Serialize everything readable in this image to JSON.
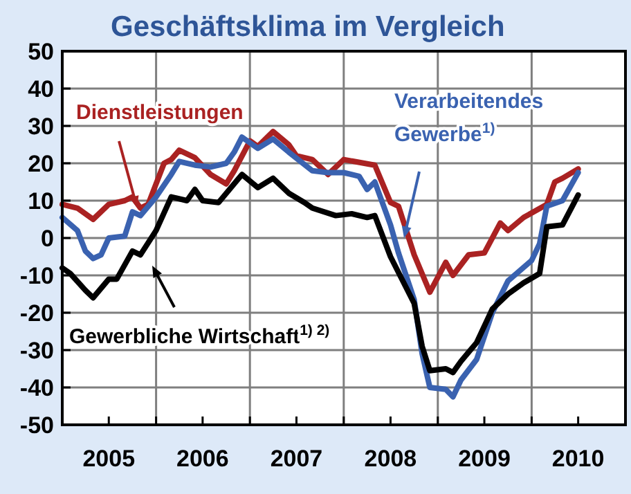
{
  "chart_data": {
    "type": "line",
    "title": "Geschäftsklima im Vergleich",
    "xlim": [
      "2005-01",
      "2011-01"
    ],
    "xticks": [
      {
        "value": "2005-01",
        "label": null
      },
      {
        "value": "2005-07",
        "label": "2005"
      },
      {
        "value": "2006-01",
        "label": null
      },
      {
        "value": "2006-07",
        "label": "2006"
      },
      {
        "value": "2007-01",
        "label": null
      },
      {
        "value": "2007-07",
        "label": "2007"
      },
      {
        "value": "2008-01",
        "label": null
      },
      {
        "value": "2008-07",
        "label": "2008"
      },
      {
        "value": "2009-01",
        "label": null
      },
      {
        "value": "2009-07",
        "label": "2009"
      },
      {
        "value": "2010-01",
        "label": null
      },
      {
        "value": "2010-07",
        "label": "2010"
      },
      {
        "value": "2011-01",
        "label": null
      }
    ],
    "ylim": [
      -50,
      50
    ],
    "yticks": [
      -50,
      -40,
      -30,
      -20,
      -10,
      0,
      10,
      20,
      30,
      40,
      50
    ],
    "grid": true,
    "marker": "none",
    "line_style": "solid",
    "series": [
      {
        "name": "Dienstleistungen",
        "color": "#aa2222",
        "x": [
          "2005-01",
          "2005-03",
          "2005-05",
          "2005-07",
          "2005-09",
          "2005-10",
          "2005-11",
          "2005-12",
          "2006-02",
          "2006-03",
          "2006-04",
          "2006-06",
          "2006-08",
          "2006-10",
          "2006-11",
          "2007-01",
          "2007-02",
          "2007-04",
          "2007-06",
          "2007-07",
          "2007-09",
          "2007-11",
          "2008-01",
          "2008-05",
          "2008-07",
          "2008-08",
          "2008-10",
          "2008-12",
          "2009-02",
          "2009-03",
          "2009-05",
          "2009-07",
          "2009-09",
          "2009-10",
          "2009-12",
          "2010-03",
          "2010-04",
          "2010-05",
          "2010-07"
        ],
        "values": [
          9,
          8,
          5,
          9,
          10,
          11,
          8,
          9,
          20,
          21,
          23.5,
          21.5,
          17,
          14.5,
          18,
          26,
          24.5,
          28.5,
          25,
          22,
          21,
          17,
          21,
          19.5,
          9.5,
          8.5,
          -4.5,
          -14.5,
          -6.5,
          -10,
          -4.5,
          -4,
          4,
          2,
          5.5,
          9,
          15,
          16,
          18.5
        ]
      },
      {
        "name": "Verarbeitendes Gewerbe$^{1)}$",
        "color": "#3a62b0",
        "x": [
          "2005-01",
          "2005-03",
          "2005-04",
          "2005-05",
          "2005-06",
          "2005-07",
          "2005-09",
          "2005-10",
          "2005-11",
          "2006-01",
          "2006-03",
          "2006-04",
          "2006-06",
          "2006-08",
          "2006-10",
          "2006-11",
          "2006-12",
          "2007-02",
          "2007-04",
          "2007-06",
          "2007-09",
          "2007-11",
          "2008-01",
          "2008-03",
          "2008-04",
          "2008-05",
          "2008-07",
          "2008-08",
          "2008-10",
          "2008-11",
          "2008-12",
          "2009-02",
          "2009-03",
          "2009-04",
          "2009-06",
          "2009-08",
          "2009-10",
          "2010-01",
          "2010-02",
          "2010-03",
          "2010-05",
          "2010-07"
        ],
        "values": [
          5.5,
          2,
          -3.5,
          -5.5,
          -4.5,
          0,
          0.5,
          7,
          6,
          11,
          17,
          20.5,
          19.5,
          19,
          20,
          23,
          27,
          24,
          26.5,
          23,
          18,
          17.5,
          17.5,
          16.5,
          13,
          15,
          3.5,
          -4,
          -16.5,
          -31,
          -40,
          -40.5,
          -42.5,
          -38,
          -32.5,
          -20,
          -11.5,
          -6,
          -1.5,
          8.5,
          10,
          17.5
        ]
      },
      {
        "name": "Gewerbliche Wirtschaft$^{1) 2)}$",
        "color": "#000000",
        "x": [
          "2005-01",
          "2005-02",
          "2005-04",
          "2005-05",
          "2005-07",
          "2005-08",
          "2005-10",
          "2005-11",
          "2006-01",
          "2006-03",
          "2006-05",
          "2006-06",
          "2006-07",
          "2006-09",
          "2006-12",
          "2007-02",
          "2007-04",
          "2007-06",
          "2007-08",
          "2007-09",
          "2007-12",
          "2008-02",
          "2008-04",
          "2008-05",
          "2008-07",
          "2008-10",
          "2008-11",
          "2008-12",
          "2009-02",
          "2009-03",
          "2009-04",
          "2009-06",
          "2009-08",
          "2009-10",
          "2009-12",
          "2010-02",
          "2010-03",
          "2010-05",
          "2010-07"
        ],
        "values": [
          -8,
          -9.5,
          -14,
          -16,
          -11,
          -11,
          -3.5,
          -4.5,
          2,
          11,
          10,
          13,
          10,
          9.5,
          17,
          13.5,
          16,
          12,
          9.5,
          8,
          6,
          6.5,
          5.5,
          6,
          -5,
          -17.5,
          -29,
          -35.5,
          -35,
          -36,
          -33,
          -28,
          -19,
          -15,
          -12,
          -9.5,
          3,
          3.5,
          11.5
        ]
      }
    ]
  }
}
